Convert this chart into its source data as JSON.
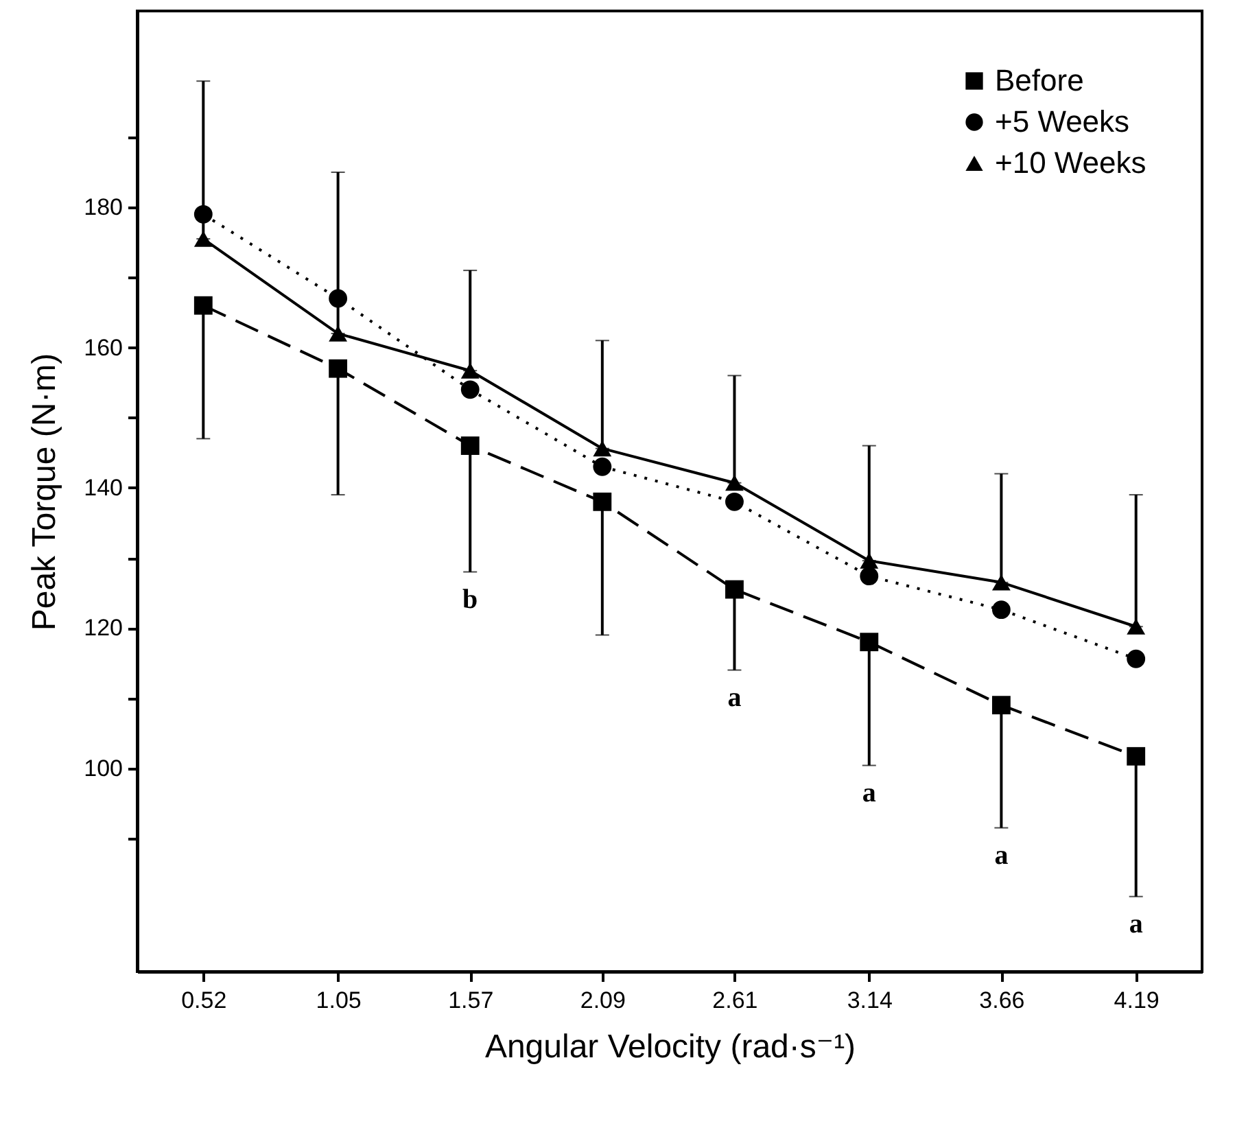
{
  "chart_data": {
    "type": "line",
    "xlabel": "Angular Velocity (rad·s⁻¹)",
    "ylabel": "Peak Torque (N·m)",
    "x": [
      0.52,
      1.05,
      1.57,
      2.09,
      2.61,
      3.14,
      3.66,
      4.19
    ],
    "xlim": [
      0.26,
      4.45
    ],
    "xticks": [
      0.52,
      1.05,
      1.57,
      2.09,
      2.61,
      3.14,
      3.66,
      4.19
    ],
    "ylim": [
      71,
      208
    ],
    "yticks": [
      {
        "value": 90,
        "label": null
      },
      100,
      {
        "value": 110,
        "label": null
      },
      120,
      {
        "value": 130,
        "label": null
      },
      140,
      {
        "value": 150,
        "label": null
      },
      160,
      {
        "value": 170,
        "label": null
      },
      180,
      {
        "value": 190,
        "label": null
      }
    ],
    "grid": false,
    "legend": "top right",
    "series": [
      {
        "name": "Before",
        "color": "#000000",
        "marker": "square",
        "line_style": "dashed",
        "values": [
          166,
          157,
          146,
          138,
          125.5,
          118,
          109,
          101.7
        ],
        "errors": [
          [
            147,
            166
          ],
          [
            139,
            157
          ],
          [
            128,
            146
          ],
          [
            119,
            138
          ],
          [
            114,
            125.5
          ],
          [
            100.4,
            118
          ],
          [
            91.5,
            109
          ],
          [
            81.7,
            101.7
          ]
        ]
      },
      {
        "name": "+5 Weeks",
        "color": "#000000",
        "marker": "circle",
        "line_style": "dotted",
        "values": [
          179,
          167,
          154,
          143,
          138,
          127.4,
          122.6,
          115.6
        ]
      },
      {
        "name": "+10 Weeks",
        "color": "#000000",
        "marker": "triangle",
        "line_style": "solid",
        "values": [
          175.5,
          162,
          156.7,
          145.6,
          140.7,
          129.6,
          126.5,
          120.2
        ],
        "errors": [
          [
            175.5,
            198
          ],
          [
            162,
            185
          ],
          [
            156.7,
            171
          ],
          [
            145.6,
            161
          ],
          [
            140.7,
            156
          ],
          [
            129.6,
            146
          ],
          [
            126.5,
            142
          ],
          [
            120.2,
            139
          ]
        ]
      }
    ],
    "annotations": [
      {
        "text": "b",
        "x": 1.57,
        "y": 128
      },
      {
        "text": "a",
        "x": 2.61,
        "y": 114
      },
      {
        "text": "a",
        "x": 3.14,
        "y": 100.4
      },
      {
        "text": "a",
        "x": 3.66,
        "y": 91.5
      },
      {
        "text": "a",
        "x": 4.19,
        "y": 81.7
      }
    ]
  }
}
